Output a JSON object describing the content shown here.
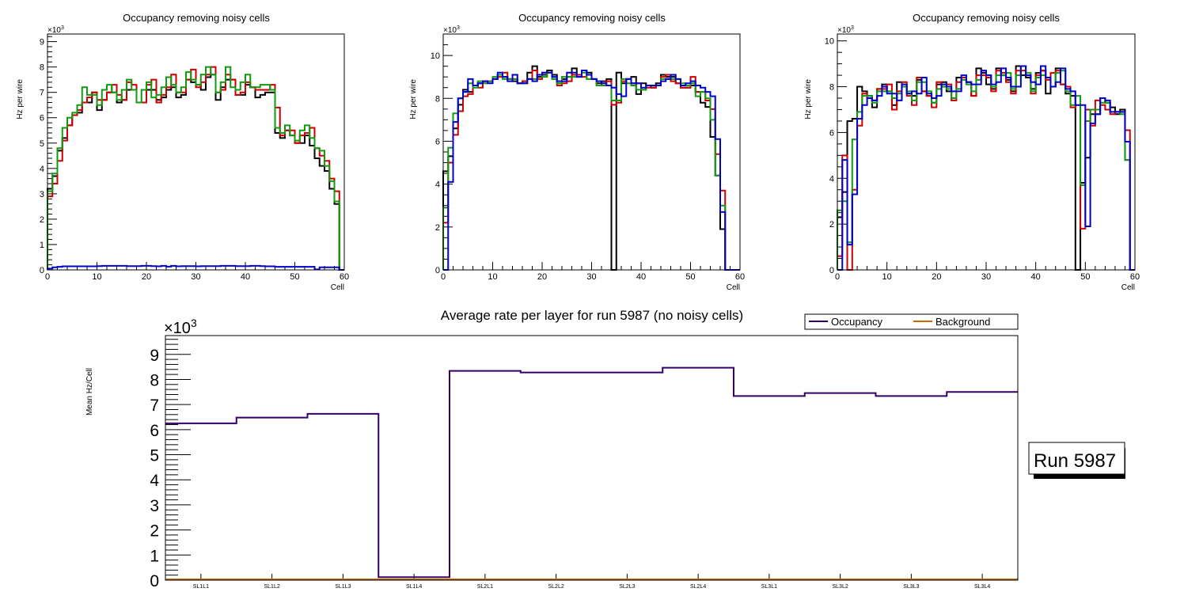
{
  "chart_data": [
    {
      "type": "line",
      "style": "step-histogram",
      "title": "Occupancy removing noisy cells",
      "xlabel": "Cell",
      "ylabel": "Hz per wire",
      "y_multiplier": "×10^3",
      "xlim": [
        0,
        60
      ],
      "ylim": [
        0,
        9.3
      ],
      "x_ticks": [
        "0",
        "10",
        "20",
        "30",
        "40",
        "50",
        "60"
      ],
      "y_ticks": [
        "0",
        "1",
        "2",
        "3",
        "4",
        "5",
        "6",
        "7",
        "8",
        "9"
      ],
      "series": [
        {
          "name": "black",
          "color": "#000000",
          "values": [
            3.2,
            3.7,
            4.7,
            5.2,
            5.7,
            6.1,
            6.2,
            6.6,
            6.6,
            7.0,
            6.3,
            6.7,
            7.0,
            7.0,
            6.6,
            6.7,
            7.1,
            7.1,
            6.6,
            6.6,
            7.1,
            7.1,
            6.7,
            6.8,
            7.1,
            7.2,
            6.8,
            6.9,
            7.5,
            7.4,
            7.3,
            7.1,
            7.6,
            7.7,
            6.7,
            7.2,
            7.5,
            7.5,
            6.9,
            6.9,
            7.3,
            7.2,
            6.8,
            6.9,
            7.0,
            7.0,
            5.4,
            5.2,
            5.5,
            5.3,
            5.0,
            5.0,
            5.3,
            4.9,
            4.4,
            4.1,
            3.9,
            3.2,
            2.6,
            0.0
          ]
        },
        {
          "name": "red",
          "color": "#cc0000",
          "values": [
            2.9,
            3.4,
            4.3,
            5.1,
            5.7,
            6.1,
            6.3,
            6.6,
            6.8,
            7.0,
            6.7,
            6.7,
            7.0,
            7.3,
            6.9,
            6.7,
            7.4,
            7.3,
            6.6,
            6.6,
            7.3,
            7.5,
            6.6,
            6.9,
            7.2,
            7.7,
            7.0,
            7.0,
            7.5,
            7.9,
            7.2,
            7.4,
            7.7,
            8.0,
            7.0,
            7.1,
            7.7,
            7.5,
            6.9,
            7.0,
            7.4,
            7.2,
            7.1,
            7.1,
            7.1,
            7.3,
            6.4,
            5.3,
            5.5,
            5.5,
            5.0,
            5.3,
            5.4,
            5.6,
            4.8,
            4.5,
            4.3,
            3.6,
            3.1,
            0.0
          ]
        },
        {
          "name": "green",
          "color": "#119911",
          "values": [
            3.1,
            3.8,
            4.8,
            5.6,
            6.0,
            6.2,
            6.5,
            7.2,
            6.9,
            6.9,
            6.5,
            7.1,
            7.3,
            7.0,
            6.7,
            7.1,
            7.5,
            7.1,
            6.6,
            7.1,
            7.4,
            6.8,
            6.9,
            7.2,
            7.6,
            7.3,
            7.0,
            7.2,
            7.8,
            7.5,
            7.3,
            7.7,
            8.0,
            7.7,
            7.0,
            7.4,
            8.0,
            7.2,
            7.1,
            7.4,
            7.7,
            7.2,
            7.2,
            7.3,
            7.3,
            7.1,
            5.6,
            5.4,
            5.7,
            5.3,
            5.1,
            5.5,
            5.7,
            5.2,
            4.8,
            4.7,
            4.1,
            3.5,
            2.7,
            0.0
          ]
        },
        {
          "name": "blue",
          "color": "#0000cc",
          "values": [
            0.05,
            0.1,
            0.12,
            0.14,
            0.14,
            0.14,
            0.14,
            0.14,
            0.14,
            0.14,
            0.15,
            0.16,
            0.16,
            0.16,
            0.16,
            0.16,
            0.15,
            0.15,
            0.15,
            0.16,
            0.16,
            0.15,
            0.14,
            0.16,
            0.13,
            0.16,
            0.14,
            0.15,
            0.15,
            0.15,
            0.14,
            0.15,
            0.15,
            0.15,
            0.15,
            0.16,
            0.16,
            0.16,
            0.15,
            0.15,
            0.15,
            0.16,
            0.16,
            0.15,
            0.14,
            0.14,
            0.12,
            0.12,
            0.12,
            0.12,
            0.12,
            0.12,
            0.12,
            0.12,
            0.02,
            0.1,
            0.1,
            0.1,
            0.1,
            0.0
          ]
        }
      ]
    },
    {
      "type": "line",
      "style": "step-histogram",
      "title": "Occupancy removing noisy cells",
      "xlabel": "Cell",
      "ylabel": "Hz per wire",
      "y_multiplier": "×10^3",
      "xlim": [
        0,
        60
      ],
      "ylim": [
        0,
        11
      ],
      "x_ticks": [
        "0",
        "10",
        "20",
        "30",
        "40",
        "50",
        "60"
      ],
      "y_ticks": [
        "0",
        "2",
        "4",
        "6",
        "8",
        "10"
      ],
      "series": [
        {
          "name": "black",
          "color": "#000000",
          "values": [
            4.6,
            5.3,
            6.6,
            7.7,
            8.4,
            8.3,
            8.6,
            8.7,
            8.8,
            8.8,
            8.9,
            9.1,
            9.0,
            8.9,
            8.8,
            8.7,
            8.8,
            9.2,
            9.5,
            9.0,
            9.1,
            9.3,
            9.1,
            8.7,
            8.9,
            9.0,
            9.4,
            9.1,
            9.3,
            9.2,
            8.9,
            8.7,
            8.8,
            8.9,
            0.0,
            9.2,
            8.7,
            8.9,
            9.0,
            8.2,
            8.7,
            8.6,
            8.5,
            8.7,
            9.1,
            9.0,
            9.0,
            8.7,
            8.5,
            8.5,
            8.6,
            8.3,
            7.8,
            7.6,
            6.2,
            4.4,
            1.9,
            0.0,
            0.0,
            0.0
          ]
        },
        {
          "name": "red",
          "color": "#cc0000",
          "values": [
            2.2,
            5.0,
            6.3,
            7.4,
            8.1,
            8.2,
            8.6,
            8.5,
            8.8,
            8.8,
            8.9,
            9.0,
            9.2,
            8.9,
            8.9,
            8.7,
            8.8,
            8.9,
            9.3,
            8.9,
            9.2,
            9.2,
            8.9,
            8.6,
            8.7,
            8.8,
            9.1,
            9.1,
            9.0,
            9.1,
            8.9,
            8.6,
            8.7,
            8.8,
            7.7,
            7.8,
            8.8,
            8.9,
            8.7,
            8.7,
            8.4,
            8.5,
            8.5,
            8.6,
            9.0,
            9.1,
            8.8,
            8.7,
            8.5,
            8.5,
            9.0,
            8.3,
            8.3,
            7.9,
            7.5,
            5.4,
            3.7,
            0.0,
            0.0,
            0.0
          ]
        },
        {
          "name": "green",
          "color": "#119911",
          "values": [
            2.9,
            5.7,
            7.3,
            8.0,
            8.3,
            8.7,
            8.5,
            8.8,
            8.7,
            8.8,
            9.0,
            9.1,
            8.9,
            8.9,
            8.9,
            8.7,
            8.7,
            8.9,
            8.9,
            9.1,
            9.0,
            9.2,
            8.9,
            8.7,
            9.0,
            9.0,
            9.0,
            9.0,
            9.2,
            8.9,
            8.9,
            8.6,
            8.6,
            8.6,
            7.9,
            7.9,
            8.9,
            8.7,
            8.6,
            8.4,
            8.4,
            8.6,
            8.6,
            8.6,
            8.9,
            8.9,
            8.9,
            8.9,
            8.7,
            8.6,
            8.7,
            8.1,
            8.3,
            8.0,
            7.0,
            4.4,
            3.0,
            0.0,
            0.0,
            0.0
          ]
        },
        {
          "name": "blue",
          "color": "#0000cc",
          "values": [
            0.0,
            4.1,
            6.9,
            8.0,
            8.3,
            8.9,
            8.6,
            8.7,
            8.8,
            8.7,
            8.9,
            9.2,
            9.0,
            8.8,
            9.1,
            8.7,
            8.7,
            8.9,
            8.8,
            9.1,
            9.2,
            9.2,
            9.0,
            8.8,
            8.8,
            9.2,
            9.2,
            9.0,
            9.3,
            9.1,
            8.9,
            8.8,
            8.7,
            8.6,
            8.5,
            8.2,
            8.1,
            8.9,
            8.7,
            8.7,
            8.5,
            8.6,
            8.6,
            8.6,
            8.8,
            8.9,
            9.1,
            8.9,
            8.6,
            8.7,
            8.8,
            8.6,
            8.5,
            8.3,
            8.1,
            6.1,
            2.7,
            0.0,
            0.0,
            0.0
          ]
        }
      ]
    },
    {
      "type": "line",
      "style": "step-histogram",
      "title": "Occupancy removing noisy cells",
      "xlabel": "Cell",
      "ylabel": "Hz per wire",
      "y_multiplier": "×10^3",
      "xlim": [
        0,
        60
      ],
      "ylim": [
        0,
        10.3
      ],
      "x_ticks": [
        "0",
        "10",
        "20",
        "30",
        "40",
        "50",
        "60"
      ],
      "y_ticks": [
        "0",
        "2",
        "4",
        "6",
        "8",
        "10"
      ],
      "series": [
        {
          "name": "black",
          "color": "#000000",
          "values": [
            2.3,
            3.4,
            6.5,
            6.6,
            8.0,
            7.8,
            7.6,
            7.1,
            7.9,
            8.1,
            7.8,
            7.2,
            8.2,
            8.0,
            7.7,
            7.6,
            8.3,
            7.8,
            7.6,
            7.3,
            8.1,
            8.2,
            7.8,
            7.5,
            8.4,
            8.4,
            8.2,
            7.6,
            8.8,
            8.6,
            8.1,
            7.9,
            8.8,
            8.5,
            8.3,
            7.8,
            8.9,
            8.5,
            8.4,
            7.9,
            8.6,
            8.7,
            7.7,
            8.0,
            8.8,
            8.1,
            7.7,
            7.6,
            0.0,
            3.8,
            4.9,
            6.8,
            6.8,
            7.5,
            7.3,
            7.1,
            6.8,
            7.0,
            4.8,
            0.0
          ]
        },
        {
          "name": "red",
          "color": "#cc0000",
          "values": [
            0.6,
            5.0,
            0.0,
            3.5,
            6.3,
            7.7,
            7.5,
            7.4,
            7.9,
            7.9,
            8.1,
            7.0,
            7.8,
            8.2,
            7.6,
            7.2,
            8.4,
            7.8,
            7.6,
            7.1,
            8.2,
            8.0,
            8.1,
            7.4,
            8.2,
            8.4,
            8.2,
            7.6,
            8.5,
            8.5,
            8.4,
            7.8,
            8.7,
            8.6,
            8.2,
            7.7,
            8.7,
            8.7,
            8.5,
            7.7,
            8.5,
            8.7,
            8.3,
            8.6,
            8.7,
            8.1,
            8.0,
            7.1,
            7.2,
            1.8,
            7.0,
            6.3,
            7.4,
            7.2,
            7.0,
            6.8,
            6.9,
            6.9,
            6.1,
            0.0
          ]
        },
        {
          "name": "green",
          "color": "#119911",
          "values": [
            2.6,
            3.0,
            1.2,
            5.7,
            6.9,
            7.6,
            7.6,
            7.3,
            7.8,
            7.8,
            7.8,
            7.5,
            7.7,
            8.0,
            7.8,
            7.4,
            8.2,
            8.2,
            7.8,
            7.3,
            7.9,
            8.0,
            7.9,
            7.5,
            7.9,
            8.3,
            8.1,
            7.8,
            8.3,
            8.7,
            8.5,
            8.0,
            8.5,
            8.5,
            8.6,
            7.9,
            8.5,
            8.9,
            8.6,
            7.8,
            8.4,
            8.5,
            8.4,
            8.0,
            8.6,
            8.7,
            7.8,
            7.2,
            7.6,
            3.7,
            6.5,
            7.0,
            7.0,
            7.3,
            7.3,
            6.9,
            6.9,
            6.8,
            4.8,
            0.0
          ]
        },
        {
          "name": "blue",
          "color": "#0000cc",
          "values": [
            0.0,
            4.8,
            1.1,
            3.3,
            6.6,
            7.2,
            7.5,
            7.4,
            7.6,
            8.0,
            7.7,
            7.7,
            7.4,
            8.1,
            7.7,
            7.8,
            7.7,
            8.4,
            7.7,
            7.5,
            7.6,
            8.1,
            8.0,
            7.8,
            7.8,
            8.5,
            8.2,
            8.1,
            8.1,
            8.7,
            8.5,
            8.1,
            8.2,
            8.8,
            8.4,
            8.0,
            8.0,
            8.9,
            8.5,
            8.2,
            8.1,
            8.9,
            8.4,
            8.0,
            8.2,
            8.8,
            7.9,
            7.8,
            7.2,
            7.2,
            1.9,
            6.4,
            6.8,
            7.5,
            7.4,
            6.9,
            6.9,
            6.9,
            5.6,
            0.0
          ]
        }
      ]
    },
    {
      "type": "line",
      "style": "step-histogram",
      "title": "Average rate per layer for run 5987 (no noisy cells)",
      "xlabel": "",
      "ylabel": "Mean Hz/Cell",
      "y_multiplier": "×10^3",
      "categories": [
        "SL1L1",
        "SL1L2",
        "SL1L3",
        "SL1L4",
        "SL2L1",
        "SL2L2",
        "SL2L3",
        "SL2L4",
        "SL3L1",
        "SL3L2",
        "SL3L3",
        "SL3L4"
      ],
      "ylim": [
        0,
        9.75
      ],
      "y_ticks": [
        "0",
        "1",
        "2",
        "3",
        "4",
        "5",
        "6",
        "7",
        "8",
        "9"
      ],
      "legend": {
        "position": "top-right",
        "entries": [
          "Occupancy",
          "Background"
        ]
      },
      "series": [
        {
          "name": "Occupancy",
          "color": "#330066",
          "values": [
            6.25,
            6.48,
            6.63,
            0.12,
            8.34,
            8.28,
            8.28,
            8.47,
            7.34,
            7.46,
            7.34,
            7.5
          ]
        },
        {
          "name": "Background",
          "color": "#cc6600",
          "values": [
            0.03,
            0.03,
            0.03,
            0.03,
            0.03,
            0.03,
            0.03,
            0.03,
            0.03,
            0.03,
            0.03,
            0.03
          ]
        }
      ]
    }
  ],
  "run_label": "Run 5987",
  "multiplier_text": {
    "base": "×10",
    "exp": "3"
  }
}
